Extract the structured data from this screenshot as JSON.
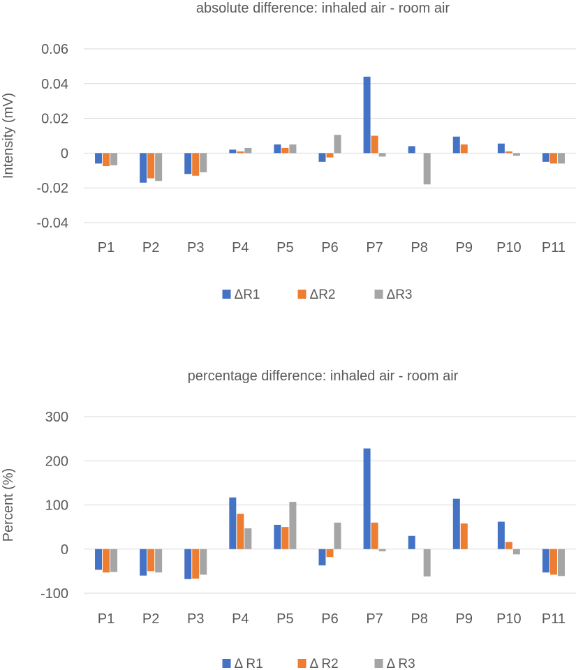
{
  "chart_data": [
    {
      "type": "bar",
      "title": "absolute difference: inhaled air - room air",
      "xlabel": "",
      "ylabel": "Intensity (mV)",
      "ylim": [
        -0.04,
        0.06
      ],
      "yticks": [
        -0.04,
        -0.02,
        0,
        0.02,
        0.04,
        0.06
      ],
      "ytick_labels": [
        "-0.04",
        "-0.02",
        "0",
        "0.02",
        "0.04",
        "0.06"
      ],
      "grid": true,
      "legend_position": "bottom",
      "categories": [
        "P1",
        "P2",
        "P3",
        "P4",
        "P5",
        "P6",
        "P7",
        "P8",
        "P9",
        "P10",
        "P11"
      ],
      "series": [
        {
          "name": "ΔR1",
          "color": "#4472C4",
          "values": [
            -0.006,
            -0.017,
            -0.012,
            0.002,
            0.005,
            -0.005,
            0.044,
            0.004,
            0.0095,
            0.0055,
            -0.005
          ]
        },
        {
          "name": "ΔR2",
          "color": "#ED7D31",
          "values": [
            -0.0075,
            -0.0145,
            -0.013,
            0.001,
            0.003,
            -0.0025,
            0.01,
            0.0,
            0.005,
            0.001,
            -0.006
          ]
        },
        {
          "name": "ΔR3",
          "color": "#A5A5A5",
          "values": [
            -0.007,
            -0.016,
            -0.011,
            0.003,
            0.005,
            0.0105,
            -0.002,
            -0.018,
            0.0,
            -0.0015,
            -0.006
          ]
        }
      ]
    },
    {
      "type": "bar",
      "title": "percentage difference: inhaled air - room air",
      "xlabel": "",
      "ylabel": "Percent (%)",
      "ylim": [
        -100,
        300
      ],
      "yticks": [
        -100,
        0,
        100,
        200,
        300
      ],
      "ytick_labels": [
        "-100",
        "0",
        "100",
        "200",
        "300"
      ],
      "grid": true,
      "legend_position": "bottom",
      "categories": [
        "P1",
        "P2",
        "P3",
        "P4",
        "P5",
        "P6",
        "P7",
        "P8",
        "P9",
        "P10",
        "P11"
      ],
      "series": [
        {
          "name": "Δ R1",
          "color": "#4472C4",
          "values": [
            -47,
            -60,
            -68,
            117,
            55,
            -37,
            228,
            30,
            114,
            62,
            -53
          ]
        },
        {
          "name": "Δ R2",
          "color": "#ED7D31",
          "values": [
            -53,
            -50,
            -67,
            80,
            50,
            -18,
            60,
            0,
            58,
            16,
            -58
          ]
        },
        {
          "name": "Δ R3",
          "color": "#A5A5A5",
          "values": [
            -52,
            -53,
            -58,
            47,
            107,
            60,
            -5,
            -62,
            0,
            -12,
            -61
          ]
        }
      ]
    }
  ]
}
